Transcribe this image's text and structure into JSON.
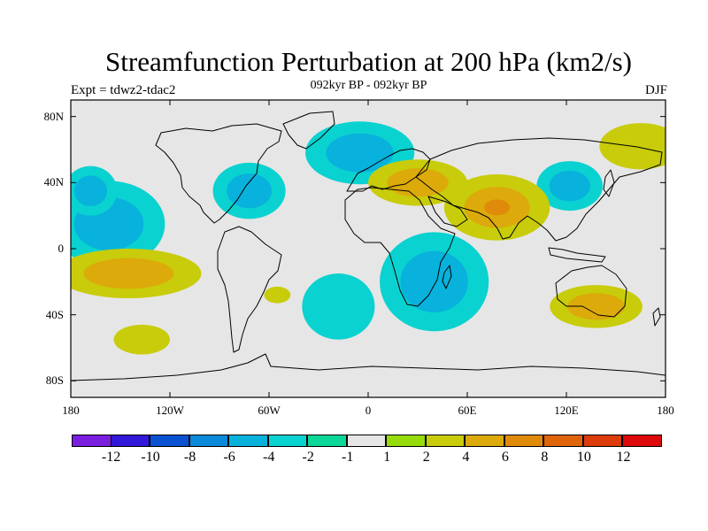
{
  "title": "Streamfunction Perturbation at 200 hPa (km2/s)",
  "subtitle": "092kyr BP - 092kyr BP",
  "left_string": "Expt = tdwz2-tdac2",
  "right_string": "DJF",
  "map": {
    "projection": "cylindrical-equidistant",
    "lon_range": [
      -180,
      180
    ],
    "lat_range": [
      -90,
      90
    ],
    "lat_ticks": [
      {
        "lat": 80,
        "label": "80N"
      },
      {
        "lat": 40,
        "label": "40N"
      },
      {
        "lat": 0,
        "label": "0"
      },
      {
        "lat": -40,
        "label": "40S"
      },
      {
        "lat": -80,
        "label": "80S"
      }
    ],
    "lon_ticks": [
      {
        "lon": -180,
        "label": "180"
      },
      {
        "lon": -120,
        "label": "120W"
      },
      {
        "lon": -60,
        "label": "60W"
      },
      {
        "lon": 0,
        "label": "0"
      },
      {
        "lon": 60,
        "label": "60E"
      },
      {
        "lon": 120,
        "label": "120E"
      },
      {
        "lon": 180,
        "label": "180"
      }
    ],
    "ocean_color": "#e6e6e6",
    "features": [
      {
        "name": "pacific-north-negative",
        "lon": -157,
        "lat": 15,
        "rlon": 34,
        "rlat": 26,
        "levels": [
          -2,
          -4
        ]
      },
      {
        "name": "pacific-west-negative",
        "lon": -168,
        "lat": 35,
        "rlon": 16,
        "rlat": 15,
        "levels": [
          -2,
          -4
        ]
      },
      {
        "name": "north-america-negative",
        "lon": -72,
        "lat": 35,
        "rlon": 22,
        "rlat": 17,
        "levels": [
          -2,
          -4
        ]
      },
      {
        "name": "north-atlantic-negative",
        "lon": -5,
        "lat": 58,
        "rlon": 33,
        "rlat": 19,
        "levels": [
          -2,
          -4
        ]
      },
      {
        "name": "east-asia-negative",
        "lon": 122,
        "lat": 38,
        "rlon": 20,
        "rlat": 15,
        "levels": [
          -2,
          -4
        ]
      },
      {
        "name": "south-indian-negative",
        "lon": 40,
        "lat": -20,
        "rlon": 33,
        "rlat": 30,
        "levels": [
          -2,
          -4
        ]
      },
      {
        "name": "south-atlantic-negative",
        "lon": -18,
        "lat": -35,
        "rlon": 22,
        "rlat": 20,
        "levels": [
          -2
        ]
      },
      {
        "name": "north-africa-positive",
        "lon": 30,
        "lat": 40,
        "rlon": 30,
        "rlat": 14,
        "levels": [
          2,
          4
        ]
      },
      {
        "name": "south-asia-positive",
        "lon": 78,
        "lat": 25,
        "rlon": 32,
        "rlat": 20,
        "levels": [
          2,
          4,
          6
        ]
      },
      {
        "name": "south-pacific-positive",
        "lon": -145,
        "lat": -15,
        "rlon": 44,
        "rlat": 15,
        "levels": [
          2,
          4
        ]
      },
      {
        "name": "australia-positive",
        "lon": 138,
        "lat": -35,
        "rlon": 28,
        "rlat": 13,
        "levels": [
          2,
          4
        ]
      },
      {
        "name": "southern-ocean-positive",
        "lon": -137,
        "lat": -55,
        "rlon": 17,
        "rlat": 9,
        "levels": [
          2
        ]
      },
      {
        "name": "arctic-siberia-positive",
        "lon": 165,
        "lat": 62,
        "rlon": 25,
        "rlat": 14,
        "levels": [
          2
        ]
      },
      {
        "name": "andes-positive",
        "lon": -55,
        "lat": -28,
        "rlon": 8,
        "rlat": 5,
        "levels": [
          2
        ]
      }
    ]
  },
  "colorbar": {
    "colors": [
      "#7a1ee0",
      "#3218d8",
      "#0a52d2",
      "#0a8ad8",
      "#08b2dc",
      "#0ad2d0",
      "#0ad898",
      "#e6e6e6",
      "#96dc0a",
      "#c8cc0a",
      "#dcaa0a",
      "#e08a0a",
      "#e0640a",
      "#dc3c0a",
      "#dc0a0a"
    ],
    "labels": [
      "-12",
      "-10",
      "-8",
      "-6",
      "-4",
      "-2",
      "-1",
      "1",
      "2",
      "4",
      "6",
      "8",
      "10",
      "12"
    ]
  }
}
